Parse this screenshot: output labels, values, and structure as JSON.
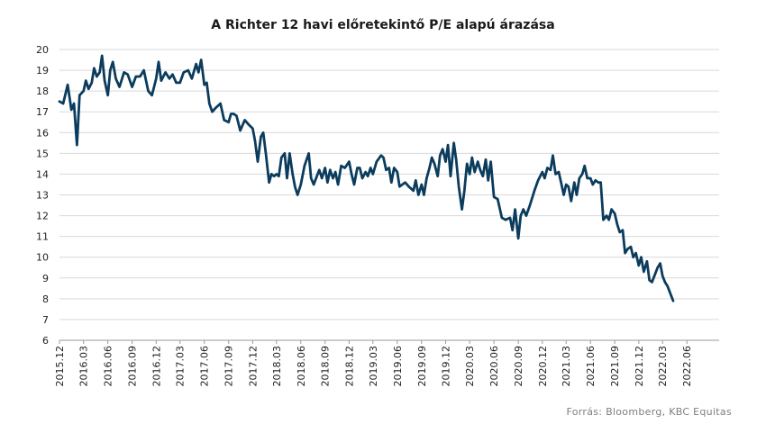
{
  "chart_data": {
    "type": "line",
    "title": "A Richter 12 havi előretekintő P/E alapú árazása",
    "source": "Forrás: Bloomberg, KBC Equitas",
    "xlabel": "",
    "ylabel": "",
    "ylim": [
      6,
      20
    ],
    "yticks": [
      6,
      7,
      8,
      9,
      10,
      11,
      12,
      13,
      14,
      15,
      16,
      17,
      18,
      19,
      20
    ],
    "x_tick_labels": [
      "2015.12",
      "2016.03",
      "2016.06",
      "2016.09",
      "2016.12",
      "2017.03",
      "2017.06",
      "2017.09",
      "2017.12",
      "2018.03",
      "2018.06",
      "2018.09",
      "2018.12",
      "2019.03",
      "2019.06",
      "2019.09",
      "2019.12",
      "2020.03",
      "2020.06",
      "2020.09",
      "2020.12",
      "2021.03",
      "2021.06",
      "2021.09",
      "2021.12",
      "2022.03",
      "2022.06"
    ],
    "grid": true,
    "line_color": "#0b3c5d",
    "series": [
      {
        "points": [
          [
            "2015-12-01",
            17.5
          ],
          [
            "2015-12-15",
            17.4
          ],
          [
            "2016-01-01",
            18.3
          ],
          [
            "2016-01-15",
            17.1
          ],
          [
            "2016-01-25",
            17.4
          ],
          [
            "2016-02-05",
            15.4
          ],
          [
            "2016-02-15",
            17.8
          ],
          [
            "2016-03-01",
            18.0
          ],
          [
            "2016-03-10",
            18.5
          ],
          [
            "2016-03-20",
            18.1
          ],
          [
            "2016-04-01",
            18.4
          ],
          [
            "2016-04-10",
            19.1
          ],
          [
            "2016-04-20",
            18.7
          ],
          [
            "2016-05-01",
            18.9
          ],
          [
            "2016-05-10",
            19.7
          ],
          [
            "2016-05-20",
            18.5
          ],
          [
            "2016-06-01",
            17.8
          ],
          [
            "2016-06-10",
            19.0
          ],
          [
            "2016-06-20",
            19.4
          ],
          [
            "2016-07-01",
            18.6
          ],
          [
            "2016-07-15",
            18.2
          ],
          [
            "2016-08-01",
            18.9
          ],
          [
            "2016-08-15",
            18.8
          ],
          [
            "2016-09-01",
            18.2
          ],
          [
            "2016-09-15",
            18.7
          ],
          [
            "2016-10-01",
            18.7
          ],
          [
            "2016-10-15",
            19.0
          ],
          [
            "2016-11-01",
            18.0
          ],
          [
            "2016-11-15",
            17.8
          ],
          [
            "2016-12-01",
            18.6
          ],
          [
            "2016-12-10",
            19.4
          ],
          [
            "2016-12-20",
            18.5
          ],
          [
            "2017-01-05",
            18.9
          ],
          [
            "2017-01-20",
            18.6
          ],
          [
            "2017-02-01",
            18.8
          ],
          [
            "2017-02-15",
            18.4
          ],
          [
            "2017-03-01",
            18.4
          ],
          [
            "2017-03-15",
            18.9
          ],
          [
            "2017-04-01",
            19.0
          ],
          [
            "2017-04-15",
            18.6
          ],
          [
            "2017-05-01",
            19.3
          ],
          [
            "2017-05-10",
            18.9
          ],
          [
            "2017-05-20",
            19.5
          ],
          [
            "2017-06-01",
            18.3
          ],
          [
            "2017-06-10",
            18.4
          ],
          [
            "2017-06-20",
            17.4
          ],
          [
            "2017-07-01",
            17.0
          ],
          [
            "2017-07-15",
            17.2
          ],
          [
            "2017-08-01",
            17.4
          ],
          [
            "2017-08-15",
            16.6
          ],
          [
            "2017-09-01",
            16.5
          ],
          [
            "2017-09-10",
            16.9
          ],
          [
            "2017-09-20",
            16.9
          ],
          [
            "2017-10-01",
            16.8
          ],
          [
            "2017-10-15",
            16.1
          ],
          [
            "2017-11-01",
            16.6
          ],
          [
            "2017-11-15",
            16.4
          ],
          [
            "2017-12-01",
            16.2
          ],
          [
            "2017-12-10",
            15.6
          ],
          [
            "2017-12-20",
            14.6
          ],
          [
            "2018-01-01",
            15.8
          ],
          [
            "2018-01-10",
            16.0
          ],
          [
            "2018-01-20",
            15.0
          ],
          [
            "2018-02-01",
            13.6
          ],
          [
            "2018-02-10",
            14.0
          ],
          [
            "2018-02-20",
            13.9
          ],
          [
            "2018-03-01",
            14.0
          ],
          [
            "2018-03-10",
            13.9
          ],
          [
            "2018-03-20",
            14.8
          ],
          [
            "2018-04-01",
            15.0
          ],
          [
            "2018-04-10",
            13.8
          ],
          [
            "2018-04-20",
            15.0
          ],
          [
            "2018-05-01",
            14.0
          ],
          [
            "2018-05-10",
            13.4
          ],
          [
            "2018-05-20",
            13.0
          ],
          [
            "2018-06-01",
            13.5
          ],
          [
            "2018-06-15",
            14.4
          ],
          [
            "2018-07-01",
            15.0
          ],
          [
            "2018-07-10",
            13.8
          ],
          [
            "2018-07-20",
            13.5
          ],
          [
            "2018-08-01",
            13.9
          ],
          [
            "2018-08-10",
            14.2
          ],
          [
            "2018-08-20",
            13.8
          ],
          [
            "2018-09-01",
            14.3
          ],
          [
            "2018-09-10",
            13.6
          ],
          [
            "2018-09-20",
            14.2
          ],
          [
            "2018-10-01",
            13.8
          ],
          [
            "2018-10-10",
            14.1
          ],
          [
            "2018-10-20",
            13.5
          ],
          [
            "2018-11-01",
            14.4
          ],
          [
            "2018-11-15",
            14.3
          ],
          [
            "2018-12-01",
            14.6
          ],
          [
            "2018-12-10",
            14.0
          ],
          [
            "2018-12-20",
            13.5
          ],
          [
            "2019-01-01",
            14.3
          ],
          [
            "2019-01-10",
            14.3
          ],
          [
            "2019-01-20",
            13.8
          ],
          [
            "2019-02-01",
            14.1
          ],
          [
            "2019-02-10",
            13.9
          ],
          [
            "2019-02-20",
            14.3
          ],
          [
            "2019-03-01",
            14.0
          ],
          [
            "2019-03-15",
            14.6
          ],
          [
            "2019-04-01",
            14.9
          ],
          [
            "2019-04-10",
            14.8
          ],
          [
            "2019-04-20",
            14.2
          ],
          [
            "2019-05-01",
            14.3
          ],
          [
            "2019-05-10",
            13.6
          ],
          [
            "2019-05-20",
            14.3
          ],
          [
            "2019-06-01",
            14.1
          ],
          [
            "2019-06-10",
            13.4
          ],
          [
            "2019-06-20",
            13.5
          ],
          [
            "2019-07-01",
            13.6
          ],
          [
            "2019-07-15",
            13.4
          ],
          [
            "2019-08-01",
            13.2
          ],
          [
            "2019-08-10",
            13.7
          ],
          [
            "2019-08-20",
            13.0
          ],
          [
            "2019-09-01",
            13.5
          ],
          [
            "2019-09-10",
            13.0
          ],
          [
            "2019-09-20",
            13.8
          ],
          [
            "2019-10-01",
            14.3
          ],
          [
            "2019-10-10",
            14.8
          ],
          [
            "2019-10-20",
            14.5
          ],
          [
            "2019-11-01",
            13.9
          ],
          [
            "2019-11-10",
            14.9
          ],
          [
            "2019-11-20",
            15.2
          ],
          [
            "2019-12-01",
            14.6
          ],
          [
            "2019-12-10",
            15.4
          ],
          [
            "2019-12-20",
            13.9
          ],
          [
            "2020-01-01",
            15.5
          ],
          [
            "2020-01-10",
            14.7
          ],
          [
            "2020-01-20",
            13.4
          ],
          [
            "2020-02-01",
            12.3
          ],
          [
            "2020-02-10",
            13.2
          ],
          [
            "2020-02-20",
            14.5
          ],
          [
            "2020-03-01",
            14.0
          ],
          [
            "2020-03-10",
            14.8
          ],
          [
            "2020-03-20",
            14.1
          ],
          [
            "2020-04-01",
            14.6
          ],
          [
            "2020-04-10",
            14.2
          ],
          [
            "2020-04-20",
            13.9
          ],
          [
            "2020-05-01",
            14.7
          ],
          [
            "2020-05-10",
            13.7
          ],
          [
            "2020-05-20",
            14.6
          ],
          [
            "2020-06-01",
            12.9
          ],
          [
            "2020-06-15",
            12.8
          ],
          [
            "2020-07-01",
            11.9
          ],
          [
            "2020-07-15",
            11.8
          ],
          [
            "2020-08-01",
            11.9
          ],
          [
            "2020-08-10",
            11.3
          ],
          [
            "2020-08-20",
            12.3
          ],
          [
            "2020-09-01",
            10.9
          ],
          [
            "2020-09-10",
            12.0
          ],
          [
            "2020-09-20",
            12.3
          ],
          [
            "2020-10-01",
            12.0
          ],
          [
            "2020-10-15",
            12.5
          ],
          [
            "2020-11-01",
            13.2
          ],
          [
            "2020-11-15",
            13.7
          ],
          [
            "2020-12-01",
            14.1
          ],
          [
            "2020-12-10",
            13.8
          ],
          [
            "2020-12-20",
            14.3
          ],
          [
            "2021-01-01",
            14.2
          ],
          [
            "2021-01-10",
            14.9
          ],
          [
            "2021-01-20",
            14.0
          ],
          [
            "2021-02-01",
            14.1
          ],
          [
            "2021-02-10",
            13.6
          ],
          [
            "2021-02-20",
            13.0
          ],
          [
            "2021-03-01",
            13.5
          ],
          [
            "2021-03-10",
            13.4
          ],
          [
            "2021-03-20",
            12.7
          ],
          [
            "2021-04-01",
            13.6
          ],
          [
            "2021-04-10",
            13.0
          ],
          [
            "2021-04-20",
            13.8
          ],
          [
            "2021-05-01",
            14.0
          ],
          [
            "2021-05-10",
            14.4
          ],
          [
            "2021-05-20",
            13.8
          ],
          [
            "2021-06-01",
            13.8
          ],
          [
            "2021-06-10",
            13.5
          ],
          [
            "2021-06-20",
            13.7
          ],
          [
            "2021-07-01",
            13.6
          ],
          [
            "2021-07-10",
            13.6
          ],
          [
            "2021-07-20",
            11.8
          ],
          [
            "2021-08-01",
            12.0
          ],
          [
            "2021-08-10",
            11.8
          ],
          [
            "2021-08-20",
            12.3
          ],
          [
            "2021-09-01",
            12.1
          ],
          [
            "2021-09-10",
            11.6
          ],
          [
            "2021-09-20",
            11.2
          ],
          [
            "2021-10-01",
            11.3
          ],
          [
            "2021-10-10",
            10.2
          ],
          [
            "2021-10-20",
            10.4
          ],
          [
            "2021-11-01",
            10.5
          ],
          [
            "2021-11-10",
            10.0
          ],
          [
            "2021-11-20",
            10.2
          ],
          [
            "2021-12-01",
            9.6
          ],
          [
            "2021-12-10",
            10.0
          ],
          [
            "2021-12-20",
            9.3
          ],
          [
            "2022-01-01",
            9.8
          ],
          [
            "2022-01-10",
            8.9
          ],
          [
            "2022-01-20",
            8.8
          ],
          [
            "2022-02-01",
            9.2
          ],
          [
            "2022-02-10",
            9.5
          ],
          [
            "2022-02-20",
            9.7
          ],
          [
            "2022-03-01",
            9.1
          ],
          [
            "2022-03-10",
            8.8
          ],
          [
            "2022-03-20",
            8.6
          ],
          [
            "2022-04-01",
            8.2
          ],
          [
            "2022-04-10",
            7.9
          ]
        ]
      }
    ]
  }
}
